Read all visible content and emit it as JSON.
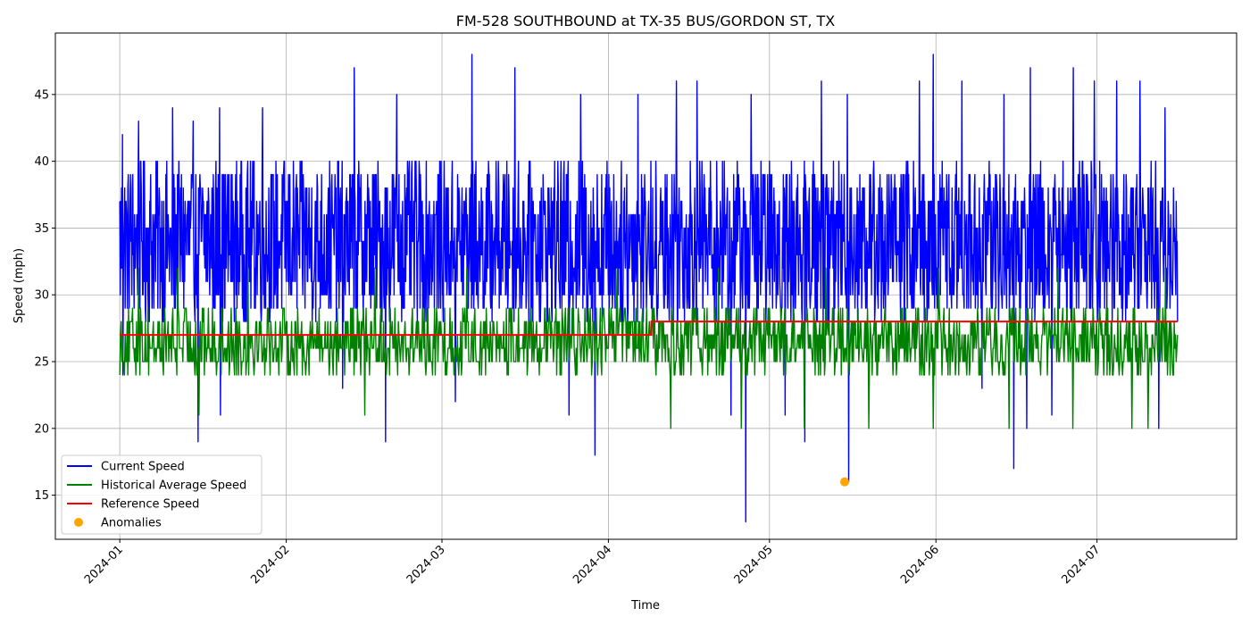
{
  "chart_data": {
    "type": "line",
    "title": "FM-528 SOUTHBOUND at TX-35 BUS/GORDON ST, TX",
    "xlabel": "Time",
    "ylabel": "Speed (mph)",
    "x_range": [
      "2023-12-20",
      "2024-07-27"
    ],
    "ylim": [
      11.7,
      49.6
    ],
    "y_ticks": [
      15,
      20,
      25,
      30,
      35,
      40,
      45
    ],
    "x_ticks": [
      "2024-01",
      "2024-02",
      "2024-03",
      "2024-04",
      "2024-05",
      "2024-06",
      "2024-07"
    ],
    "grid": true,
    "legend_position": "lower-left",
    "series": [
      {
        "name": "Current Speed",
        "color": "#0000ff",
        "x_range": [
          "2024-01-01",
          "2024-07-16"
        ],
        "typical_range": [
          28,
          40
        ],
        "peaks": [
          {
            "x": "2024-01-02",
            "y": 42
          },
          {
            "x": "2024-01-05",
            "y": 43
          },
          {
            "x": "2024-01-11",
            "y": 44
          },
          {
            "x": "2024-01-15",
            "y": 43
          },
          {
            "x": "2024-01-20",
            "y": 44
          },
          {
            "x": "2024-01-28",
            "y": 44
          },
          {
            "x": "2024-02-14",
            "y": 47
          },
          {
            "x": "2024-02-22",
            "y": 45
          },
          {
            "x": "2024-03-07",
            "y": 48
          },
          {
            "x": "2024-03-15",
            "y": 47
          },
          {
            "x": "2024-03-27",
            "y": 45
          },
          {
            "x": "2024-04-07",
            "y": 45
          },
          {
            "x": "2024-04-14",
            "y": 46
          },
          {
            "x": "2024-04-18",
            "y": 46
          },
          {
            "x": "2024-04-28",
            "y": 45
          },
          {
            "x": "2024-05-11",
            "y": 46
          },
          {
            "x": "2024-05-16",
            "y": 45
          },
          {
            "x": "2024-05-29",
            "y": 46
          },
          {
            "x": "2024-06-01",
            "y": 48
          },
          {
            "x": "2024-06-06",
            "y": 46
          },
          {
            "x": "2024-06-14",
            "y": 45
          },
          {
            "x": "2024-06-19",
            "y": 47
          },
          {
            "x": "2024-06-27",
            "y": 47
          },
          {
            "x": "2024-07-01",
            "y": 46
          },
          {
            "x": "2024-07-05",
            "y": 46
          },
          {
            "x": "2024-07-09",
            "y": 46
          },
          {
            "x": "2024-07-14",
            "y": 44
          }
        ],
        "dips": [
          {
            "x": "2024-01-02",
            "y": 24
          },
          {
            "x": "2024-01-16",
            "y": 19
          },
          {
            "x": "2024-01-20",
            "y": 21
          },
          {
            "x": "2024-02-12",
            "y": 23
          },
          {
            "x": "2024-02-20",
            "y": 19
          },
          {
            "x": "2024-03-04",
            "y": 22
          },
          {
            "x": "2024-03-25",
            "y": 21
          },
          {
            "x": "2024-03-30",
            "y": 18
          },
          {
            "x": "2024-04-10",
            "y": 22
          },
          {
            "x": "2024-04-24",
            "y": 21
          },
          {
            "x": "2024-04-27",
            "y": 13
          },
          {
            "x": "2024-05-04",
            "y": 21
          },
          {
            "x": "2024-05-08",
            "y": 19
          },
          {
            "x": "2024-05-16",
            "y": 16
          },
          {
            "x": "2024-06-10",
            "y": 23
          },
          {
            "x": "2024-06-16",
            "y": 17
          },
          {
            "x": "2024-06-18",
            "y": 20
          },
          {
            "x": "2024-06-23",
            "y": 21
          },
          {
            "x": "2024-07-13",
            "y": 20
          }
        ]
      },
      {
        "name": "Historical Average Speed",
        "color": "#008000",
        "x_range": [
          "2024-01-01",
          "2024-07-16"
        ],
        "typical_range": [
          24,
          29
        ],
        "peaks": [
          {
            "x": "2024-01-05",
            "y": 32
          },
          {
            "x": "2024-01-12",
            "y": 32
          },
          {
            "x": "2024-01-25",
            "y": 32
          },
          {
            "x": "2024-02-18",
            "y": 32
          },
          {
            "x": "2024-03-06",
            "y": 32
          },
          {
            "x": "2024-04-03",
            "y": 32
          },
          {
            "x": "2024-04-22",
            "y": 32
          },
          {
            "x": "2024-05-12",
            "y": 32
          },
          {
            "x": "2024-06-02",
            "y": 32
          },
          {
            "x": "2024-06-24",
            "y": 32
          },
          {
            "x": "2024-07-14",
            "y": 32
          }
        ],
        "dips": [
          {
            "x": "2024-01-16",
            "y": 21
          },
          {
            "x": "2024-02-16",
            "y": 21
          },
          {
            "x": "2024-04-13",
            "y": 20
          },
          {
            "x": "2024-04-26",
            "y": 20
          },
          {
            "x": "2024-05-08",
            "y": 20
          },
          {
            "x": "2024-05-20",
            "y": 20
          },
          {
            "x": "2024-06-01",
            "y": 20
          },
          {
            "x": "2024-06-15",
            "y": 20
          },
          {
            "x": "2024-06-27",
            "y": 20
          },
          {
            "x": "2024-07-08",
            "y": 20
          },
          {
            "x": "2024-07-11",
            "y": 20
          }
        ]
      },
      {
        "name": "Reference Speed",
        "color": "#ff0000",
        "points": [
          {
            "x": "2024-01-01",
            "y": 27
          },
          {
            "x": "2024-04-09",
            "y": 27
          },
          {
            "x": "2024-04-09",
            "y": 28
          },
          {
            "x": "2024-07-16",
            "y": 28
          }
        ]
      },
      {
        "name": "Anomalies",
        "color": "#ffa500",
        "marker": "circle",
        "points": [
          {
            "x": "2024-05-15",
            "y": 16
          }
        ]
      }
    ]
  }
}
